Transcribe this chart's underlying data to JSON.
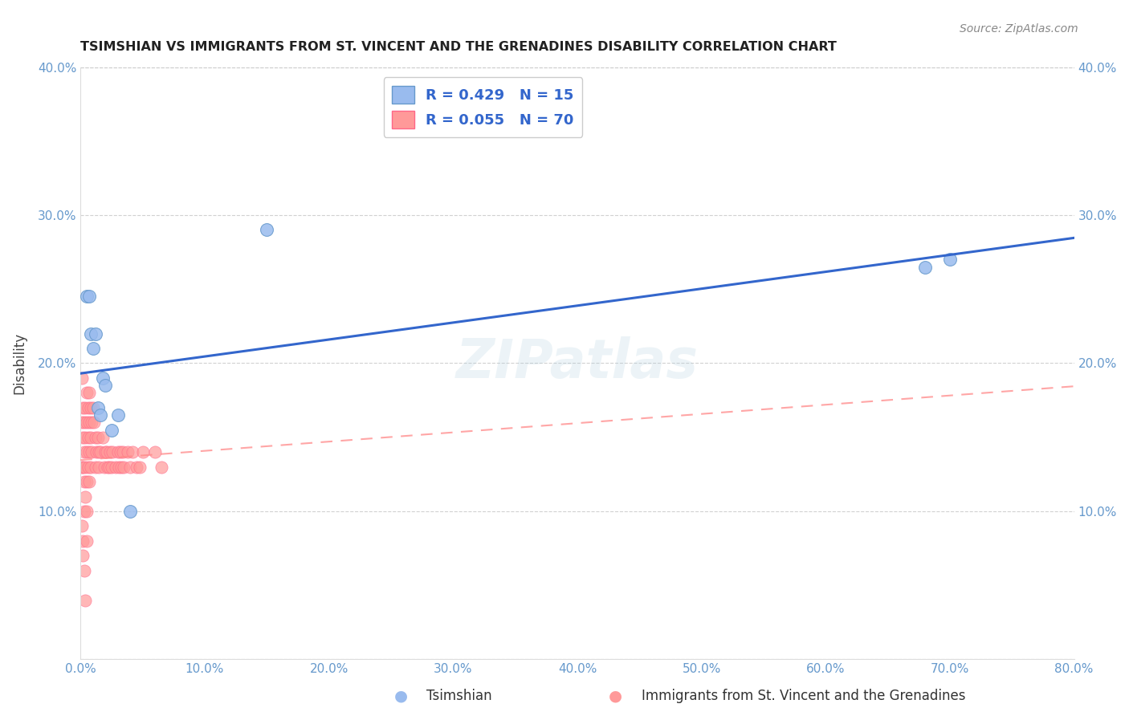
{
  "title": "TSIMSHIAN VS IMMIGRANTS FROM ST. VINCENT AND THE GRENADINES DISABILITY CORRELATION CHART",
  "source": "Source: ZipAtlas.com",
  "ylabel": "Disability",
  "xlim": [
    0.0,
    0.8
  ],
  "ylim": [
    0.0,
    0.4
  ],
  "xtick_vals": [
    0.0,
    0.1,
    0.2,
    0.3,
    0.4,
    0.5,
    0.6,
    0.7,
    0.8
  ],
  "xticklabels": [
    "0.0%",
    "10.0%",
    "20.0%",
    "30.0%",
    "40.0%",
    "50.0%",
    "60.0%",
    "70.0%",
    "80.0%"
  ],
  "ytick_vals": [
    0.0,
    0.1,
    0.2,
    0.3,
    0.4
  ],
  "yticklabels": [
    "",
    "10.0%",
    "20.0%",
    "30.0%",
    "40.0%"
  ],
  "legend_entry1": "R = 0.429   N = 15",
  "legend_entry2": "R = 0.055   N = 70",
  "watermark": "ZIPatlas",
  "blue_fill": "#99BBEE",
  "blue_edge": "#6699CC",
  "pink_fill": "#FF9999",
  "pink_edge": "#FF6688",
  "line_blue": "#3366CC",
  "line_pink": "#FF8888",
  "tsimshian_x": [
    0.005,
    0.007,
    0.008,
    0.01,
    0.012,
    0.014,
    0.016,
    0.018,
    0.02,
    0.025,
    0.03,
    0.04,
    0.15,
    0.68,
    0.7
  ],
  "tsimshian_y": [
    0.245,
    0.245,
    0.22,
    0.21,
    0.22,
    0.17,
    0.165,
    0.19,
    0.185,
    0.155,
    0.165,
    0.1,
    0.29,
    0.265,
    0.27
  ],
  "svg_x": [
    0.001,
    0.001,
    0.001,
    0.002,
    0.002,
    0.002,
    0.002,
    0.003,
    0.003,
    0.003,
    0.003,
    0.004,
    0.004,
    0.004,
    0.004,
    0.005,
    0.005,
    0.005,
    0.005,
    0.005,
    0.005,
    0.006,
    0.006,
    0.006,
    0.007,
    0.007,
    0.007,
    0.007,
    0.008,
    0.008,
    0.008,
    0.009,
    0.009,
    0.01,
    0.011,
    0.012,
    0.012,
    0.013,
    0.014,
    0.015,
    0.015,
    0.016,
    0.018,
    0.019,
    0.02,
    0.021,
    0.022,
    0.023,
    0.024,
    0.025,
    0.026,
    0.028,
    0.03,
    0.031,
    0.032,
    0.033,
    0.034,
    0.035,
    0.038,
    0.04,
    0.042,
    0.045,
    0.048,
    0.05,
    0.06,
    0.065,
    0.001,
    0.002,
    0.003,
    0.004
  ],
  "svg_y": [
    0.19,
    0.16,
    0.13,
    0.17,
    0.15,
    0.13,
    0.08,
    0.16,
    0.14,
    0.12,
    0.1,
    0.17,
    0.15,
    0.13,
    0.11,
    0.18,
    0.16,
    0.14,
    0.12,
    0.1,
    0.08,
    0.17,
    0.15,
    0.13,
    0.18,
    0.16,
    0.14,
    0.12,
    0.17,
    0.15,
    0.13,
    0.16,
    0.14,
    0.17,
    0.16,
    0.15,
    0.13,
    0.14,
    0.15,
    0.14,
    0.13,
    0.14,
    0.15,
    0.13,
    0.14,
    0.14,
    0.13,
    0.13,
    0.14,
    0.13,
    0.14,
    0.13,
    0.14,
    0.13,
    0.14,
    0.13,
    0.14,
    0.13,
    0.14,
    0.13,
    0.14,
    0.13,
    0.13,
    0.14,
    0.14,
    0.13,
    0.09,
    0.07,
    0.06,
    0.04
  ]
}
